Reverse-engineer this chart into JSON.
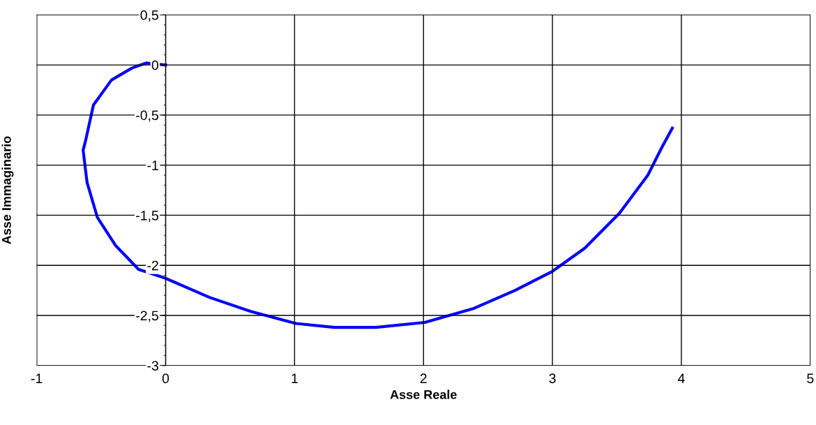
{
  "chart_data": {
    "type": "line",
    "xlabel": "Asse Reale",
    "ylabel": "Asse Immaginario",
    "xlim": [
      -1,
      5
    ],
    "ylim": [
      -3,
      0.5
    ],
    "xticks": [
      {
        "value": -1,
        "label": "-1"
      },
      0,
      1,
      2,
      3,
      4,
      5
    ],
    "yticks": [
      {
        "value": 0.5,
        "label": "0,5"
      },
      0,
      {
        "value": -0.5,
        "label": "-0,5"
      },
      {
        "value": -1,
        "label": "-1"
      },
      {
        "value": -1.5,
        "label": "-1,5"
      },
      {
        "value": -2,
        "label": "-2"
      },
      {
        "value": -2.5,
        "label": "-2,5"
      },
      {
        "value": -3,
        "label": "-3"
      }
    ],
    "grid": true,
    "marker": "none",
    "line_style": "solid",
    "series": [
      {
        "color": "#0000ff",
        "x": [
          0,
          -0.15,
          -0.26,
          -0.42,
          -0.56,
          -0.62,
          -0.64,
          -0.61,
          -0.53,
          -0.39,
          -0.21,
          0,
          0.34,
          0.66,
          1.01,
          1.31,
          1.63,
          2.01,
          2.39,
          2.71,
          3.0,
          3.25,
          3.52,
          3.74,
          3.85,
          3.93
        ],
        "values": [
          0,
          0.02,
          -0.03,
          -0.15,
          -0.4,
          -0.75,
          -0.85,
          -1.17,
          -1.52,
          -1.8,
          -2.04,
          -2.13,
          -2.32,
          -2.46,
          -2.58,
          -2.62,
          -2.62,
          -2.57,
          -2.43,
          -2.25,
          -2.06,
          -1.83,
          -1.48,
          -1.1,
          -0.82,
          -0.63
        ]
      }
    ]
  }
}
